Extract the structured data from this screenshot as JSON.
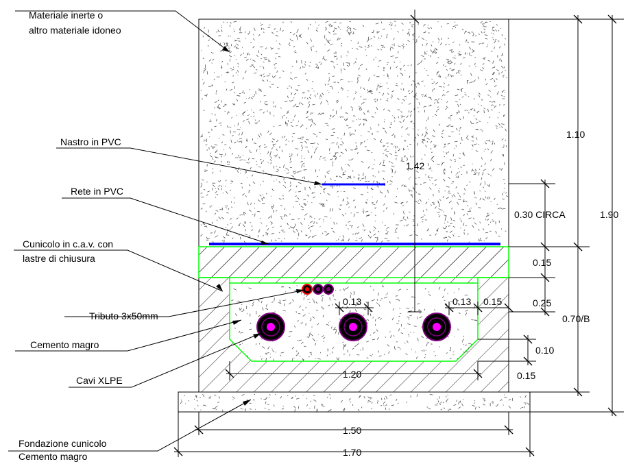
{
  "labels": {
    "fill_material_1": "Materiale inerte o",
    "fill_material_2": "altro materiale idoneo",
    "pvc_tape": "Nastro in PVC",
    "pvc_mesh": "Rete in PVC",
    "conduit_1": "Cunicolo in c.a.v. con",
    "conduit_2": "lastre di chiusura",
    "tributo": "Tributo 3x50mm",
    "lean_concrete": "Cemento magro",
    "xlpe_cables": "Cavi XLPE",
    "foundation_1": "Fondazione cunicolo",
    "foundation_2": "Cemento magro"
  },
  "dimensions": {
    "total_height": "1.90",
    "top_fill": "1.10",
    "mesh_depth": "0.30 CIRCA",
    "tape_depth": "1.42",
    "slab": "0.15",
    "side_wall": "0.25",
    "conduit_height": "0.70/B",
    "chamfer": "0.10",
    "floor": "0.15",
    "cable_gap_1": "0.13",
    "cable_gap_2": "0.13",
    "cable_wall": "0.15",
    "inner_width": "1.20",
    "outer_width": "1.50",
    "foundation_width": "1.70"
  },
  "colors": {
    "outline": "#000000",
    "conduit_outline": "#00ff00",
    "pvc": "#0000ff",
    "cable_core": "#ff00ff",
    "cable_sheath": "#800080",
    "tributo_ring": "#ff0000"
  }
}
